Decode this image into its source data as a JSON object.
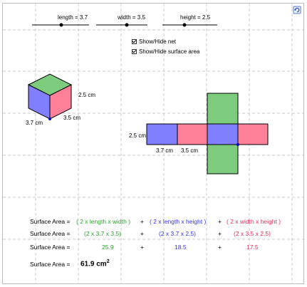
{
  "sliders": [
    {
      "label": "length = 3.7",
      "value": 3.7
    },
    {
      "label": "width = 3.5",
      "value": 3.5
    },
    {
      "label": "height = 2.5",
      "value": 2.5
    }
  ],
  "checkboxes": [
    {
      "label": "Show/Hide net",
      "checked": true
    },
    {
      "label": "Show/Hide surface area",
      "checked": true
    }
  ],
  "cube_labels": {
    "height": "2.5 cm",
    "length": "3.7 cm",
    "width": "3.5 cm"
  },
  "net_labels": {
    "height": "2.5 cm",
    "length": "3.7 cm",
    "width": "3.5 cm"
  },
  "surface_area": {
    "label": "Surface Area =",
    "formula": [
      "( 2 x length x width )",
      "( 2 x length x height )",
      "( 2 x width x height )"
    ],
    "substituted": [
      "(2  x  3.7  x  3.5)",
      "(2  x  3.7  x  2.5)",
      "(2  x  3.5  x  2.5)"
    ],
    "results": [
      "25.9",
      "18.5",
      "17.5"
    ],
    "plus": "+",
    "total": "61.9 cm",
    "total_exp": "2"
  },
  "colors": {
    "green": "#7dcc7d",
    "blue": "#8080ff",
    "pink": "#ff8099",
    "grid": "#c8c8c8"
  },
  "icons": {
    "refresh": "refresh-icon"
  }
}
